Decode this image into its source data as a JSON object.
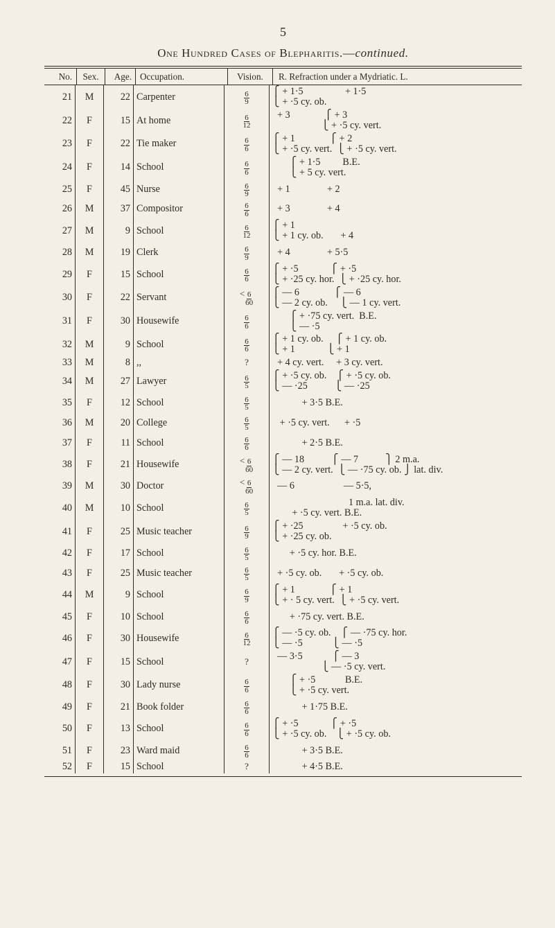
{
  "page_number": "5",
  "title_parts": {
    "sc": "One Hundred Cases of Blepharitis.—",
    "ital": "continued."
  },
  "columns": [
    "No.",
    "Sex.",
    "Age.",
    "Occupation.",
    "Vision.",
    "R.  Refraction under a Mydriatic.  L."
  ],
  "rows": [
    {
      "no": "21",
      "sex": "M",
      "age": "22",
      "occ": "Carpenter",
      "vis": "6/9",
      "ref": "⎧ + 1·5                 + 1·5\n⎩ + ·5 cy. ob."
    },
    {
      "no": "22",
      "sex": "F",
      "age": "15",
      "occ": "At home",
      "vis": "6/12",
      "ref": "  + 3              ⎧ + 3\n                    ⎩ + ·5 cy. vert."
    },
    {
      "no": "23",
      "sex": "F",
      "age": "22",
      "occ": "Tie maker",
      "vis": "6/6",
      "ref": "⎧ + 1              ⎧ + 2\n⎩ + ·5 cy. vert.  ⎩ + ·5 cy. vert."
    },
    {
      "no": "24",
      "sex": "F",
      "age": "14",
      "occ": "School",
      "vis": "6/6",
      "ref": "       ⎧ + 1·5         B.E.\n       ⎩ + 5 cy. vert."
    },
    {
      "no": "25",
      "sex": "F",
      "age": "45",
      "occ": "Nurse",
      "vis": "6/9",
      "ref": "  + 1               + 2"
    },
    {
      "no": "26",
      "sex": "M",
      "age": "37",
      "occ": "Compositor",
      "vis": "6/6",
      "ref": "  + 3               + 4"
    },
    {
      "no": "27",
      "sex": "M",
      "age": "9",
      "occ": "School",
      "vis": "6/12",
      "ref": "⎧ + 1\n⎩ + 1 cy. ob.       + 4"
    },
    {
      "no": "28",
      "sex": "M",
      "age": "19",
      "occ": "Clerk",
      "vis": "6/9",
      "ref": "  + 4               + 5·5"
    },
    {
      "no": "29",
      "sex": "F",
      "age": "15",
      "occ": "School",
      "vis": "6/6",
      "ref": "⎧ + ·5             ⎧ + ·5\n⎩ + ·25 cy. hor.  ⎩ + ·25 cy. hor."
    },
    {
      "no": "30",
      "sex": "F",
      "age": "22",
      "occ": "Servant",
      "vis": "<6/60",
      "ref": "⎧ — 6              ⎧ — 6\n⎩ — 2 cy. ob.     ⎩ — 1 cy. vert."
    },
    {
      "no": "31",
      "sex": "F",
      "age": "30",
      "occ": "Housewife",
      "vis": "6/6",
      "ref": "       ⎧ + ·75 cy. vert.  B.E.\n       ⎩ — ·5"
    },
    {
      "no": "32",
      "sex": "M",
      "age": "9",
      "occ": "School",
      "vis": "6/6",
      "ref": "⎧ + 1 cy. ob.     ⎧ + 1 cy. ob.\n⎩ + 1             ⎩ + 1"
    },
    {
      "no": "33",
      "sex": "M",
      "age": "8",
      "occ": ",,",
      "vis": "?",
      "ref": "  + 4 cy. vert.     + 3 cy. vert."
    },
    {
      "no": "34",
      "sex": "M",
      "age": "27",
      "occ": "Lawyer",
      "vis": "6/5",
      "ref": "⎧ + ·5 cy. ob.    ⎧ + ·5 cy. ob.\n⎩ — ·25           ⎩ — ·25"
    },
    {
      "no": "35",
      "sex": "F",
      "age": "12",
      "occ": "School",
      "vis": "6/5",
      "ref": "            + 3·5 B.E."
    },
    {
      "no": "36",
      "sex": "M",
      "age": "20",
      "occ": "College",
      "vis": "6/5",
      "ref": "   + ·5 cy. vert.      + ·5"
    },
    {
      "no": "37",
      "sex": "F",
      "age": "11",
      "occ": "School",
      "vis": "6/6",
      "ref": "            + 2·5 B.E."
    },
    {
      "no": "38",
      "sex": "F",
      "age": "21",
      "occ": "Housewife",
      "vis": "<6/60",
      "ref": "⎧ — 18           ⎧ — 7           ⎫ 2 m.a.\n⎩ — 2 cy. vert.  ⎩ — ·75 cy. ob. ⎭ lat. div."
    },
    {
      "no": "39",
      "sex": "M",
      "age": "30",
      "occ": "Doctor",
      "vis": "<6/60",
      "ref": "  — 6                    — 5·5,"
    },
    {
      "no": "40",
      "sex": "M",
      "age": "10",
      "occ": "School",
      "vis": "6/5",
      "ref": "                               1 m.a. lat. div.\n        + ·5 cy. vert. B.E."
    },
    {
      "no": "41",
      "sex": "F",
      "age": "25",
      "occ": "Music teacher",
      "vis": "6/9",
      "ref": "⎧ + ·25                + ·5 cy. ob.\n⎩ + ·25 cy. ob."
    },
    {
      "no": "42",
      "sex": "F",
      "age": "17",
      "occ": "School",
      "vis": "6/5",
      "ref": "       + ·5 cy. hor. B.E."
    },
    {
      "no": "43",
      "sex": "F",
      "age": "25",
      "occ": "Music teacher",
      "vis": "6/5",
      "ref": "  + ·5 cy. ob.       + ·5 cy. ob."
    },
    {
      "no": "44",
      "sex": "M",
      "age": "9",
      "occ": "School",
      "vis": "6/9",
      "ref": "⎧ + 1              ⎧ + 1\n⎩ + · 5 cy. vert.  ⎩ + ·5 cy. vert."
    },
    {
      "no": "45",
      "sex": "F",
      "age": "10",
      "occ": "School",
      "vis": "6/6",
      "ref": "       + ·75 cy. vert. B.E."
    },
    {
      "no": "46",
      "sex": "F",
      "age": "30",
      "occ": "Housewife",
      "vis": "6/12",
      "ref": "⎧ — ·5 cy. ob.    ⎧ — ·75 cy. hor.\n⎩ — ·5            ⎩ — ·5"
    },
    {
      "no": "47",
      "sex": "F",
      "age": "15",
      "occ": "School",
      "vis": "?",
      "ref": "  — 3·5            ⎧ — 3\n                    ⎩ — ·5 cy. vert."
    },
    {
      "no": "48",
      "sex": "F",
      "age": "30",
      "occ": "Lady nurse",
      "vis": "6/6",
      "ref": "       ⎧ + ·5            B.E.\n       ⎩ + ·5 cy. vert."
    },
    {
      "no": "49",
      "sex": "F",
      "age": "21",
      "occ": "Book folder",
      "vis": "6/6",
      "ref": "            + 1·75 B.E."
    },
    {
      "no": "50",
      "sex": "F",
      "age": "13",
      "occ": "School",
      "vis": "6/6",
      "ref": "⎧ + ·5             ⎧ + ·5\n⎩ + ·5 cy. ob.    ⎩ + ·5 cy. ob."
    },
    {
      "no": "51",
      "sex": "F",
      "age": "23",
      "occ": "Ward maid",
      "vis": "6/6",
      "ref": "            + 3·5 B.E."
    },
    {
      "no": "52",
      "sex": "F",
      "age": "15",
      "occ": "School",
      "vis": "?",
      "ref": "            + 4·5 B.E."
    }
  ]
}
